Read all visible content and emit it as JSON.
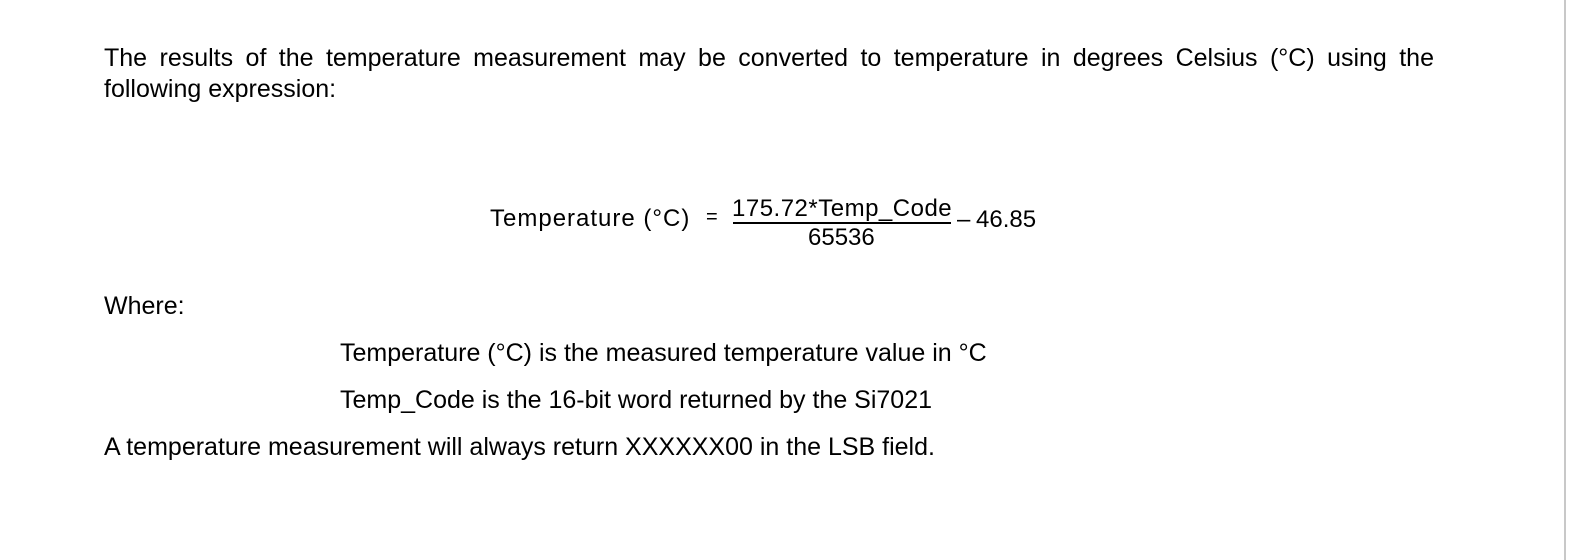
{
  "intro_text": "The results of the temperature measurement may be converted to temperature in degrees Celsius (°C) using the following expression:",
  "equation": {
    "lhs": "Temperature (°C)",
    "equals": "=",
    "numerator": "175.72*Temp_Code",
    "denominator": "65536",
    "minus": "–",
    "constant": "46.85"
  },
  "where_label": "Where:",
  "definitions": [
    "Temperature (°C) is the measured temperature value in °C",
    "Temp_Code is the 16-bit word returned by the Si7021"
  ],
  "note": "A temperature measurement will always return XXXXXX00 in the LSB field."
}
